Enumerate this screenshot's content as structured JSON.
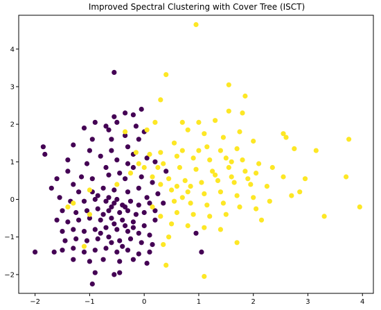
{
  "chart_data": {
    "type": "scatter",
    "title": "Improved Spectral Clustering with Cover Tree (ISCT)",
    "xlabel": "",
    "ylabel": "",
    "xlim": [
      -2.3,
      4.2
    ],
    "ylim": [
      -2.5,
      4.9
    ],
    "xticks": [
      -2,
      -1,
      0,
      1,
      2,
      3,
      4
    ],
    "yticks": [
      -2,
      -1,
      0,
      1,
      2,
      3,
      4
    ],
    "xtick_labels": [
      "−2",
      "−1",
      "0",
      "1",
      "2",
      "3",
      "4"
    ],
    "ytick_labels": [
      "−2",
      "−1",
      "0",
      "1",
      "2",
      "3",
      "4"
    ],
    "grid": false,
    "legend": "none",
    "series": [
      {
        "color": "#440154",
        "points": [
          [
            -0.55,
            3.38
          ],
          [
            -0.35,
            2.3
          ],
          [
            -0.55,
            2.2
          ],
          [
            -0.2,
            2.25
          ],
          [
            -0.05,
            2.4
          ],
          [
            -0.15,
            1.95
          ],
          [
            -0.5,
            2.05
          ],
          [
            -0.65,
            1.85
          ],
          [
            -0.9,
            2.05
          ],
          [
            -0.95,
            1.6
          ],
          [
            -0.6,
            1.6
          ],
          [
            -0.35,
            1.7
          ],
          [
            -0.1,
            1.6
          ],
          [
            0.0,
            1.8
          ],
          [
            -0.7,
            1.95
          ],
          [
            -1.1,
            1.9
          ],
          [
            -1.3,
            1.45
          ],
          [
            -1.85,
            1.4
          ],
          [
            -1.82,
            1.2
          ],
          [
            -1.4,
            1.05
          ],
          [
            -1.0,
            1.3
          ],
          [
            -0.8,
            1.15
          ],
          [
            -0.5,
            1.05
          ],
          [
            -0.2,
            1.2
          ],
          [
            0.05,
            1.1
          ],
          [
            0.2,
            1.0
          ],
          [
            -0.3,
            0.95
          ],
          [
            -0.7,
            0.85
          ],
          [
            -1.05,
            0.95
          ],
          [
            -1.4,
            0.75
          ],
          [
            -1.6,
            0.55
          ],
          [
            -1.3,
            0.4
          ],
          [
            -0.95,
            0.55
          ],
          [
            -0.65,
            0.65
          ],
          [
            -0.35,
            0.55
          ],
          [
            -0.05,
            0.6
          ],
          [
            0.15,
            0.45
          ],
          [
            0.4,
            0.75
          ],
          [
            0.25,
            0.15
          ],
          [
            0.35,
            -0.1
          ],
          [
            0.2,
            -0.3
          ],
          [
            -1.7,
            0.3
          ],
          [
            -1.2,
            0.2
          ],
          [
            -0.95,
            0.2
          ],
          [
            -0.75,
            0.3
          ],
          [
            -0.55,
            0.25
          ],
          [
            -0.3,
            0.2
          ],
          [
            -0.1,
            0.3
          ],
          [
            0.05,
            0.05
          ],
          [
            -1.55,
            0.05
          ],
          [
            -1.35,
            -0.05
          ],
          [
            -1.1,
            -0.05
          ],
          [
            -0.9,
            0.0
          ],
          [
            -0.7,
            -0.05
          ],
          [
            -0.55,
            -0.1
          ],
          [
            -0.4,
            -0.15
          ],
          [
            -0.25,
            -0.05
          ],
          [
            -0.1,
            -0.15
          ],
          [
            0.1,
            -0.1
          ],
          [
            -1.5,
            -0.3
          ],
          [
            -1.25,
            -0.35
          ],
          [
            -1.05,
            -0.3
          ],
          [
            -0.85,
            -0.25
          ],
          [
            -0.65,
            -0.3
          ],
          [
            -0.45,
            -0.35
          ],
          [
            -0.3,
            -0.3
          ],
          [
            -0.15,
            -0.4
          ],
          [
            0.0,
            -0.35
          ],
          [
            0.2,
            -0.55
          ],
          [
            -1.6,
            -0.55
          ],
          [
            -1.4,
            -0.6
          ],
          [
            -1.2,
            -0.55
          ],
          [
            -1.0,
            -0.5
          ],
          [
            -0.8,
            -0.55
          ],
          [
            -0.6,
            -0.5
          ],
          [
            -0.4,
            -0.55
          ],
          [
            -0.2,
            -0.6
          ],
          [
            0.0,
            -0.7
          ],
          [
            -1.5,
            -0.85
          ],
          [
            -1.3,
            -0.8
          ],
          [
            -1.1,
            -0.85
          ],
          [
            -0.9,
            -0.8
          ],
          [
            -0.7,
            -0.75
          ],
          [
            -0.5,
            -0.8
          ],
          [
            -0.3,
            -0.85
          ],
          [
            -0.1,
            -0.9
          ],
          [
            0.1,
            -0.95
          ],
          [
            -1.45,
            -1.1
          ],
          [
            -1.25,
            -1.05
          ],
          [
            -1.05,
            -1.1
          ],
          [
            -0.85,
            -1.05
          ],
          [
            -0.65,
            -1.0
          ],
          [
            -0.45,
            -1.1
          ],
          [
            -0.25,
            -1.05
          ],
          [
            -0.05,
            -1.15
          ],
          [
            0.15,
            -1.2
          ],
          [
            -1.5,
            -1.35
          ],
          [
            -1.3,
            -1.3
          ],
          [
            -1.1,
            -1.4
          ],
          [
            -0.9,
            -1.35
          ],
          [
            -0.7,
            -1.3
          ],
          [
            -0.5,
            -1.4
          ],
          [
            -0.3,
            -1.35
          ],
          [
            -0.1,
            -1.45
          ],
          [
            0.1,
            -1.4
          ],
          [
            -1.3,
            -1.6
          ],
          [
            -1.0,
            -1.65
          ],
          [
            -0.75,
            -1.6
          ],
          [
            -0.45,
            -1.65
          ],
          [
            -0.2,
            -1.6
          ],
          [
            0.05,
            -1.7
          ],
          [
            -0.9,
            -1.95
          ],
          [
            -0.55,
            -2.0
          ],
          [
            -0.95,
            -2.25
          ],
          [
            -2.0,
            -1.4
          ],
          [
            -1.65,
            -1.4
          ],
          [
            1.05,
            -1.4
          ],
          [
            0.95,
            -0.9
          ],
          [
            -0.45,
            -1.95
          ],
          [
            -0.85,
            0.1
          ],
          [
            -0.65,
            0.05
          ],
          [
            -0.5,
            0.0
          ],
          [
            -0.35,
            -0.2
          ],
          [
            -0.6,
            -0.2
          ],
          [
            -0.75,
            -0.4
          ],
          [
            -0.55,
            -0.65
          ],
          [
            -0.35,
            -0.7
          ],
          [
            -0.8,
            -0.9
          ],
          [
            -0.6,
            -1.15
          ],
          [
            -0.4,
            -1.25
          ],
          [
            -0.2,
            -0.75
          ],
          [
            -1.15,
            0.6
          ],
          [
            -0.45,
            0.7
          ],
          [
            -0.2,
            0.85
          ],
          [
            -0.6,
            1.3
          ],
          [
            -0.3,
            1.4
          ]
        ]
      },
      {
        "color": "#fde725",
        "points": [
          [
            0.95,
            4.65
          ],
          [
            0.4,
            3.32
          ],
          [
            1.55,
            3.05
          ],
          [
            1.85,
            2.75
          ],
          [
            0.3,
            2.65
          ],
          [
            0.05,
            1.85
          ],
          [
            0.7,
            2.05
          ],
          [
            1.0,
            2.05
          ],
          [
            1.3,
            2.1
          ],
          [
            1.55,
            2.35
          ],
          [
            1.8,
            2.3
          ],
          [
            0.8,
            1.85
          ],
          [
            1.1,
            1.75
          ],
          [
            1.45,
            1.65
          ],
          [
            1.75,
            1.8
          ],
          [
            2.55,
            1.75
          ],
          [
            2.6,
            1.65
          ],
          [
            0.55,
            1.5
          ],
          [
            1.15,
            1.4
          ],
          [
            1.4,
            1.3
          ],
          [
            1.7,
            1.35
          ],
          [
            2.0,
            1.55
          ],
          [
            2.75,
            1.35
          ],
          [
            3.15,
            1.3
          ],
          [
            3.75,
            1.6
          ],
          [
            0.3,
            1.25
          ],
          [
            0.6,
            1.15
          ],
          [
            0.9,
            1.1
          ],
          [
            1.2,
            1.05
          ],
          [
            1.5,
            1.1
          ],
          [
            1.8,
            1.05
          ],
          [
            2.1,
            0.95
          ],
          [
            0.35,
            0.95
          ],
          [
            0.65,
            0.85
          ],
          [
            0.95,
            0.8
          ],
          [
            1.25,
            0.75
          ],
          [
            1.55,
            0.85
          ],
          [
            1.85,
            0.75
          ],
          [
            2.05,
            0.7
          ],
          [
            2.35,
            0.85
          ],
          [
            2.55,
            0.6
          ],
          [
            2.95,
            0.55
          ],
          [
            3.7,
            0.6
          ],
          [
            0.45,
            0.55
          ],
          [
            0.75,
            0.5
          ],
          [
            1.05,
            0.45
          ],
          [
            1.35,
            0.5
          ],
          [
            1.65,
            0.45
          ],
          [
            1.95,
            0.4
          ],
          [
            2.25,
            0.35
          ],
          [
            2.85,
            0.2
          ],
          [
            0.5,
            0.25
          ],
          [
            0.8,
            0.2
          ],
          [
            1.1,
            0.15
          ],
          [
            1.4,
            0.2
          ],
          [
            1.7,
            0.1
          ],
          [
            2.0,
            0.05
          ],
          [
            2.3,
            -0.05
          ],
          [
            2.7,
            0.1
          ],
          [
            0.55,
            -0.05
          ],
          [
            0.85,
            -0.1
          ],
          [
            1.15,
            -0.15
          ],
          [
            1.45,
            -0.1
          ],
          [
            1.75,
            -0.2
          ],
          [
            2.05,
            -0.25
          ],
          [
            3.95,
            -0.2
          ],
          [
            0.6,
            -0.35
          ],
          [
            0.9,
            -0.4
          ],
          [
            1.2,
            -0.45
          ],
          [
            1.5,
            -0.4
          ],
          [
            2.15,
            -0.55
          ],
          [
            3.3,
            -0.45
          ],
          [
            0.5,
            -0.65
          ],
          [
            0.8,
            -0.7
          ],
          [
            1.1,
            -0.75
          ],
          [
            1.4,
            -0.8
          ],
          [
            0.45,
            -1.0
          ],
          [
            1.7,
            -1.15
          ],
          [
            0.35,
            -1.2
          ],
          [
            0.4,
            -1.75
          ],
          [
            1.1,
            -2.05
          ],
          [
            -1.1,
            -1.25
          ],
          [
            -1.3,
            -0.1
          ],
          [
            -1.4,
            -0.2
          ],
          [
            -1.0,
            -0.4
          ],
          [
            -1.0,
            0.25
          ],
          [
            -0.5,
            0.4
          ],
          [
            -0.25,
            0.7
          ],
          [
            -0.1,
            0.95
          ],
          [
            0.1,
            1.2
          ],
          [
            0.15,
            0.6
          ],
          [
            0.3,
            0.4
          ],
          [
            0.15,
            -0.2
          ],
          [
            0.3,
            -0.45
          ],
          [
            -0.15,
            1.25
          ],
          [
            0.2,
            2.05
          ],
          [
            -0.35,
            1.8
          ],
          [
            0.0,
            0.85
          ],
          [
            0.25,
            0.85
          ],
          [
            0.6,
            0.35
          ],
          [
            0.7,
            0.05
          ],
          [
            0.85,
            0.35
          ],
          [
            1.3,
            0.65
          ],
          [
            1.6,
            0.6
          ],
          [
            1.9,
            0.55
          ],
          [
            1.6,
            1.0
          ],
          [
            1.0,
            1.3
          ],
          [
            0.7,
            1.3
          ]
        ]
      }
    ]
  }
}
